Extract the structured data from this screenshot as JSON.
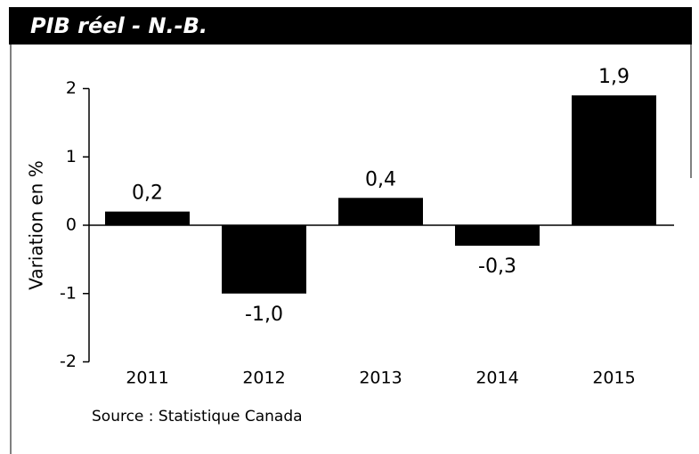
{
  "chart_data": {
    "type": "bar",
    "title": "PIB réel - N.-B.",
    "ylabel": "Variation en %",
    "source": "Source : Statistique Canada",
    "categories": [
      "2011",
      "2012",
      "2013",
      "2014",
      "2015"
    ],
    "values": [
      0.2,
      -1.0,
      0.4,
      -0.3,
      1.9
    ],
    "value_labels": [
      "0,2",
      "-1,0",
      "0,4",
      "-0,3",
      "1,9"
    ],
    "color": "#000000",
    "ylim": [
      -2,
      2
    ],
    "yticks": [
      -2,
      -1,
      0,
      1,
      2
    ]
  }
}
